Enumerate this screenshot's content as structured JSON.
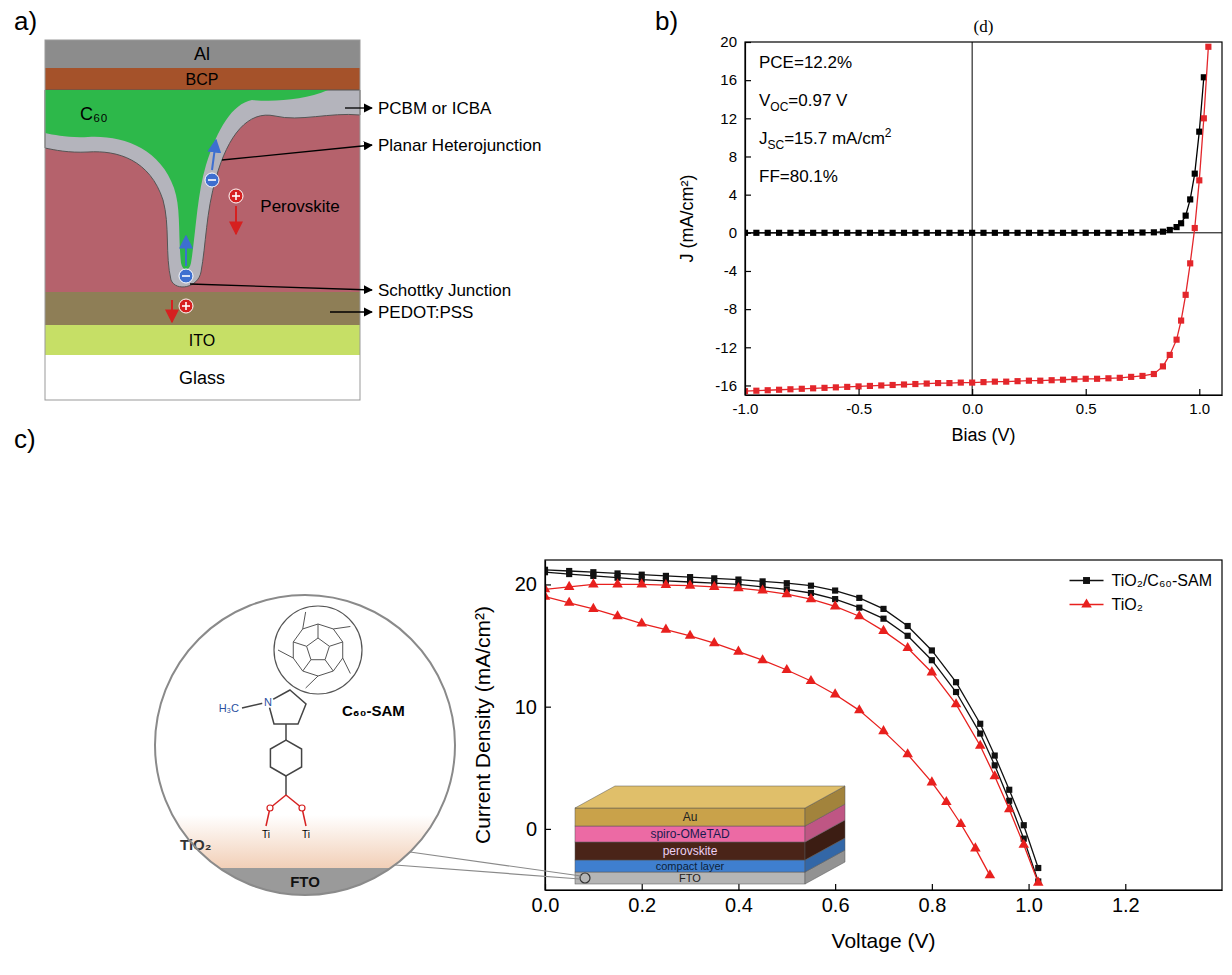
{
  "panel_labels": [
    "a)",
    "b)",
    "c)"
  ],
  "diagram_a": {
    "layers": {
      "al": "Al",
      "bcp": "BCP",
      "c60": "C₆₀",
      "perovskite": "Perovskite",
      "ito": "ITO",
      "glass": "Glass"
    },
    "callouts": [
      "PCBM or ICBA",
      "Planar Heterojunction",
      "Schottky Junction",
      "PEDOT:PSS"
    ]
  },
  "chart_data": [
    {
      "type": "line",
      "title": "(d)",
      "xlabel": "Bias (V)",
      "ylabel": "J (mA/cm²)",
      "xlim": [
        -1.0,
        1.1
      ],
      "ylim": [
        -17,
        20
      ],
      "xticks": [
        {
          "value": -1.0,
          "label": "-1.0"
        },
        {
          "value": -0.5,
          "label": "-0.5"
        },
        {
          "value": 0,
          "label": "0.0"
        },
        {
          "value": 0.5,
          "label": "0.5"
        },
        {
          "value": 1.0,
          "label": "1.0"
        }
      ],
      "yticks": [
        -16,
        -12,
        -8,
        -4,
        0,
        4,
        8,
        12,
        16,
        20
      ],
      "hlines": [
        0
      ],
      "vlines": [
        0
      ],
      "annotations": [
        [
          {
            "text": "PCE=12.2%"
          }
        ],
        [
          {
            "text": "V"
          },
          {
            "text": "OC",
            "sub": true
          },
          {
            "text": "=0.97 V"
          }
        ],
        [
          {
            "text": "J"
          },
          {
            "text": "SC",
            "sub": true
          },
          {
            "text": "=15.7 mA/cm"
          },
          {
            "text": "2",
            "sup": true
          }
        ],
        [
          {
            "text": "FF=80.1%"
          }
        ]
      ],
      "series": [
        {
          "color": "#000000",
          "marker": "square",
          "line_style": "solid",
          "x": [
            -1.0,
            -0.95,
            -0.9,
            -0.85,
            -0.8,
            -0.75,
            -0.7,
            -0.65,
            -0.6,
            -0.55,
            -0.5,
            -0.45,
            -0.4,
            -0.35,
            -0.3,
            -0.25,
            -0.2,
            -0.15,
            -0.1,
            -0.05,
            0.0,
            0.05,
            0.1,
            0.15,
            0.2,
            0.25,
            0.3,
            0.35,
            0.4,
            0.45,
            0.5,
            0.55,
            0.6,
            0.65,
            0.7,
            0.75,
            0.8,
            0.84,
            0.87,
            0.9,
            0.92,
            0.94,
            0.96,
            0.98,
            1.0,
            1.02
          ],
          "values": [
            0,
            0,
            0,
            0,
            0,
            0,
            0,
            0,
            0,
            0,
            0,
            0,
            0,
            0,
            0,
            0,
            0,
            0,
            0,
            0,
            0,
            0,
            0,
            0,
            0,
            0,
            0,
            0,
            0,
            0,
            0,
            0,
            0,
            0,
            0.02,
            0.03,
            0.05,
            0.12,
            0.3,
            0.6,
            1.0,
            1.8,
            3.5,
            6.2,
            10.6,
            16.3
          ]
        },
        {
          "color": "#e3262b",
          "marker": "square",
          "line_style": "solid",
          "x": [
            -1.0,
            -0.95,
            -0.9,
            -0.85,
            -0.8,
            -0.75,
            -0.7,
            -0.65,
            -0.6,
            -0.55,
            -0.5,
            -0.45,
            -0.4,
            -0.35,
            -0.3,
            -0.25,
            -0.2,
            -0.15,
            -0.1,
            -0.05,
            0.0,
            0.05,
            0.1,
            0.15,
            0.2,
            0.25,
            0.3,
            0.35,
            0.4,
            0.45,
            0.5,
            0.55,
            0.6,
            0.65,
            0.7,
            0.75,
            0.8,
            0.84,
            0.87,
            0.9,
            0.92,
            0.94,
            0.96,
            0.98,
            1.0,
            1.02,
            1.04
          ],
          "values": [
            -16.6,
            -16.55,
            -16.5,
            -16.45,
            -16.4,
            -16.35,
            -16.3,
            -16.25,
            -16.2,
            -16.15,
            -16.1,
            -16.05,
            -16.0,
            -15.95,
            -15.9,
            -15.85,
            -15.8,
            -15.75,
            -15.75,
            -15.7,
            -15.7,
            -15.65,
            -15.6,
            -15.6,
            -15.55,
            -15.5,
            -15.5,
            -15.45,
            -15.4,
            -15.35,
            -15.3,
            -15.3,
            -15.25,
            -15.2,
            -15.1,
            -15.0,
            -14.8,
            -14.0,
            -12.8,
            -11.2,
            -9.2,
            -6.5,
            -3.2,
            0.5,
            5.5,
            12.0,
            19.5
          ]
        }
      ]
    },
    {
      "type": "line",
      "xlabel": "Voltage (V)",
      "ylabel": "Current Density (mA/cm²)",
      "xlim": [
        0,
        1.4
      ],
      "ylim": [
        -5,
        22
      ],
      "xticks": [
        {
          "value": 0,
          "label": "0.0"
        },
        {
          "value": 0.2,
          "label": "0.2"
        },
        {
          "value": 0.4,
          "label": "0.4"
        },
        {
          "value": 0.6,
          "label": "0.6"
        },
        {
          "value": 0.8,
          "label": "0.8"
        },
        {
          "value": 1.0,
          "label": "1.0"
        },
        {
          "value": 1.2,
          "label": "1.2"
        }
      ],
      "yticks": [
        0,
        10,
        20
      ],
      "legend": "upper right",
      "series": [
        {
          "name": "TiO₂/C₆₀-SAM",
          "color": "#111111",
          "marker": "square",
          "line_style": "solid",
          "x": [
            0,
            0.05,
            0.1,
            0.15,
            0.2,
            0.25,
            0.3,
            0.35,
            0.4,
            0.45,
            0.5,
            0.55,
            0.6,
            0.65,
            0.7,
            0.75,
            0.8,
            0.85,
            0.9,
            0.93,
            0.96,
            0.99,
            1.02
          ],
          "values": [
            21.2,
            21.1,
            21.0,
            20.9,
            20.8,
            20.7,
            20.6,
            20.5,
            20.4,
            20.25,
            20.1,
            19.9,
            19.5,
            18.9,
            18.0,
            16.6,
            14.6,
            12.0,
            8.6,
            6.0,
            3.2,
            0.3,
            -3.2
          ]
        },
        {
          "color": "#111111",
          "marker": "square",
          "line_style": "solid",
          "x": [
            0,
            0.05,
            0.1,
            0.15,
            0.2,
            0.25,
            0.3,
            0.35,
            0.4,
            0.45,
            0.5,
            0.55,
            0.6,
            0.65,
            0.7,
            0.75,
            0.8,
            0.85,
            0.9,
            0.93,
            0.96,
            0.99,
            1.02
          ],
          "values": [
            21.0,
            20.85,
            20.7,
            20.55,
            20.4,
            20.3,
            20.2,
            20.1,
            20.0,
            19.8,
            19.6,
            19.3,
            18.8,
            18.1,
            17.2,
            15.8,
            13.8,
            11.2,
            7.8,
            5.2,
            2.3,
            -0.8,
            -4.3
          ]
        },
        {
          "name": "TiO₂",
          "color": "#e8201e",
          "marker": "triangle",
          "line_style": "solid",
          "x": [
            0,
            0.05,
            0.1,
            0.15,
            0.2,
            0.25,
            0.3,
            0.35,
            0.4,
            0.45,
            0.5,
            0.55,
            0.6,
            0.65,
            0.7,
            0.75,
            0.8,
            0.85,
            0.9,
            0.93,
            0.96,
            0.99,
            1.02
          ],
          "values": [
            19.6,
            19.8,
            20.0,
            20.0,
            20.0,
            19.95,
            19.9,
            19.8,
            19.7,
            19.5,
            19.2,
            18.8,
            18.2,
            17.4,
            16.2,
            14.8,
            12.8,
            10.2,
            6.8,
            4.3,
            1.6,
            -1.3,
            -4.4
          ]
        },
        {
          "color": "#e8201e",
          "marker": "triangle",
          "line_style": "solid",
          "x": [
            0,
            0.05,
            0.1,
            0.15,
            0.2,
            0.25,
            0.3,
            0.35,
            0.4,
            0.45,
            0.5,
            0.55,
            0.6,
            0.65,
            0.7,
            0.75,
            0.8,
            0.83,
            0.86,
            0.89,
            0.92
          ],
          "values": [
            19.0,
            18.5,
            18.0,
            17.4,
            16.8,
            16.3,
            15.8,
            15.2,
            14.5,
            13.8,
            13.0,
            12.1,
            11.0,
            9.7,
            8.0,
            6.1,
            3.8,
            2.2,
            0.4,
            -1.6,
            -3.8
          ]
        }
      ]
    }
  ],
  "inset_c": {
    "molecule": {
      "label": "C₆₀-SAM",
      "methyl": "H₃C",
      "nitrogen": "N",
      "anchors": [
        "Ti",
        "Ti"
      ]
    },
    "substrate": [
      "TiO₂",
      "FTO"
    ],
    "device_layers": [
      "Au",
      "spiro-OMeTAD",
      "perovskite",
      "compact layer",
      "FTO"
    ]
  }
}
